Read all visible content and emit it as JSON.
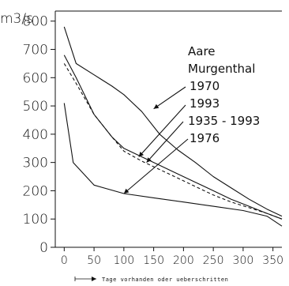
{
  "chart_data": {
    "type": "line",
    "ylabel": "m3/s",
    "footnote": "Tage vorhanden oder ueberschritten",
    "x_ticks": [
      0,
      50,
      100,
      150,
      200,
      250,
      300,
      350
    ],
    "y_ticks": [
      0,
      100,
      200,
      300,
      400,
      500,
      600,
      700,
      800
    ],
    "xlim": [
      -15,
      365
    ],
    "ylim": [
      0,
      830
    ],
    "grid": false,
    "series_labels": [
      "Aare",
      "Murgenthal",
      "1970",
      "1993",
      "1935 - 1993",
      "1976"
    ],
    "series": [
      {
        "name": "1970",
        "style": "solid",
        "x": [
          0,
          20,
          50,
          80,
          100,
          130,
          160,
          190,
          220,
          250,
          280,
          310,
          340,
          365
        ],
        "y": [
          780,
          650,
          610,
          570,
          540,
          480,
          400,
          345,
          300,
          250,
          210,
          170,
          135,
          110
        ]
      },
      {
        "name": "1993",
        "style": "solid",
        "x": [
          0,
          20,
          50,
          80,
          100,
          130,
          160,
          190,
          220,
          250,
          280,
          310,
          340,
          365
        ],
        "y": [
          680,
          600,
          470,
          390,
          350,
          320,
          290,
          260,
          230,
          200,
          170,
          145,
          120,
          100
        ]
      },
      {
        "name": "1935 - 1993",
        "style": "dashed",
        "x": [
          0,
          20,
          50,
          80,
          100,
          130,
          160,
          190,
          220,
          250,
          280,
          310,
          340,
          365
        ],
        "y": [
          650,
          580,
          470,
          390,
          340,
          305,
          275,
          245,
          215,
          185,
          160,
          140,
          120,
          100
        ]
      },
      {
        "name": "1976",
        "style": "solid",
        "x": [
          0,
          15,
          50,
          100,
          150,
          200,
          250,
          300,
          340,
          365
        ],
        "y": [
          510,
          300,
          220,
          190,
          175,
          160,
          145,
          130,
          110,
          75
        ]
      }
    ],
    "annotations": [
      {
        "label": "1970",
        "target_x": 150,
        "target_y": 490
      },
      {
        "label": "1993",
        "target_x": 125,
        "target_y": 320
      },
      {
        "label": "1935 - 1993",
        "target_x": 138,
        "target_y": 300
      },
      {
        "label": "1976",
        "target_x": 100,
        "target_y": 190
      }
    ]
  }
}
